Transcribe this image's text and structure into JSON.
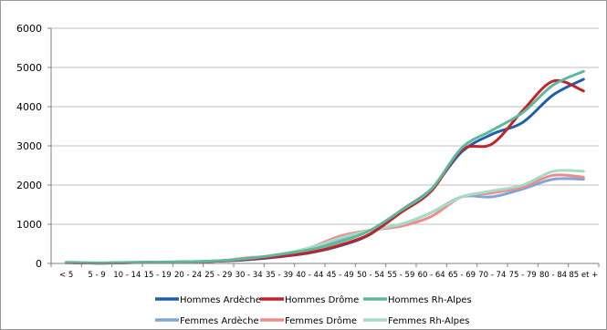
{
  "chart_data": {
    "type": "line",
    "title": "",
    "xlabel": "",
    "ylabel": "",
    "ylim": [
      0,
      6000
    ],
    "yticks": [
      0,
      1000,
      2000,
      3000,
      4000,
      5000,
      6000
    ],
    "grid": true,
    "legend_position": "bottom",
    "categories": [
      "< 5",
      "5 - 9",
      "10 - 14",
      "15 - 19",
      "20 - 24",
      "25 - 29",
      "30 - 34",
      "35 - 39",
      "40 - 44",
      "45 - 49",
      "50 - 54",
      "55 - 59",
      "60 - 64",
      "65 - 69",
      "70 - 74",
      "75 - 79",
      "80 - 84",
      "85 et +"
    ],
    "series": [
      {
        "name": "Hommes Ardèche",
        "color": "#1f5fa8",
        "values": [
          20,
          10,
          20,
          30,
          40,
          60,
          100,
          170,
          270,
          450,
          750,
          1350,
          1900,
          2850,
          3300,
          3600,
          4300,
          4700
        ]
      },
      {
        "name": "Hommes Drôme",
        "color": "#c0232a",
        "values": [
          20,
          10,
          20,
          30,
          40,
          60,
          110,
          180,
          280,
          470,
          760,
          1300,
          1850,
          2900,
          3050,
          3900,
          4650,
          4400
        ]
      },
      {
        "name": "Hommes Rh-Alpes",
        "color": "#5fb89c",
        "values": [
          30,
          15,
          25,
          35,
          45,
          70,
          130,
          230,
          350,
          550,
          850,
          1350,
          1900,
          2950,
          3400,
          3850,
          4550,
          4900
        ]
      },
      {
        "name": "Femmes Ardèche",
        "color": "#7fa6d4",
        "values": [
          20,
          10,
          20,
          30,
          40,
          60,
          100,
          180,
          320,
          600,
          850,
          1000,
          1300,
          1700,
          1700,
          1900,
          2150,
          2150
        ]
      },
      {
        "name": "Femmes Drôme",
        "color": "#ee8c8c",
        "values": [
          20,
          10,
          20,
          30,
          40,
          60,
          150,
          200,
          400,
          700,
          850,
          950,
          1200,
          1700,
          1800,
          1950,
          2250,
          2200
        ]
      },
      {
        "name": "Femmes Rh-Alpes",
        "color": "#a6dcc4",
        "values": [
          30,
          15,
          25,
          35,
          45,
          70,
          120,
          230,
          400,
          650,
          850,
          1000,
          1300,
          1700,
          1850,
          2000,
          2350,
          2350
        ]
      }
    ]
  }
}
